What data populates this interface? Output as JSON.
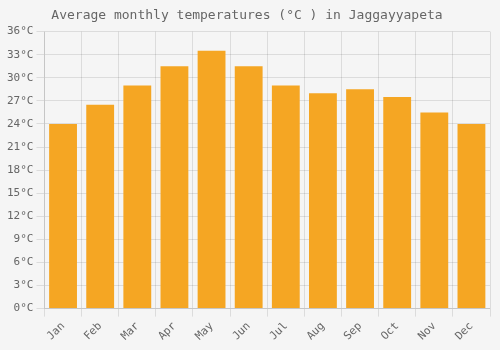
{
  "chart_data": {
    "type": "bar",
    "title": "Average monthly temperatures (°C ) in Jaggayyapeta",
    "categories": [
      "Jan",
      "Feb",
      "Mar",
      "Apr",
      "May",
      "Jun",
      "Jul",
      "Aug",
      "Sep",
      "Oct",
      "Nov",
      "Dec"
    ],
    "values": [
      24.0,
      26.5,
      29.0,
      31.5,
      33.5,
      31.5,
      29.0,
      28.0,
      28.5,
      27.5,
      25.5,
      24.0
    ],
    "color": "#F5A623",
    "ylim": [
      0,
      36
    ],
    "yticks": [
      {
        "value": 0,
        "label": "0°C"
      },
      {
        "value": 3,
        "label": "3°C"
      },
      {
        "value": 6,
        "label": "6°C"
      },
      {
        "value": 9,
        "label": "9°C"
      },
      {
        "value": 12,
        "label": "12°C"
      },
      {
        "value": 15,
        "label": "15°C"
      },
      {
        "value": 18,
        "label": "18°C"
      },
      {
        "value": 21,
        "label": "21°C"
      },
      {
        "value": 24,
        "label": "24°C"
      },
      {
        "value": 27,
        "label": "27°C"
      },
      {
        "value": 30,
        "label": "30°C"
      },
      {
        "value": 33,
        "label": "33°C"
      },
      {
        "value": 36,
        "label": "36°C"
      }
    ],
    "grid": true
  }
}
